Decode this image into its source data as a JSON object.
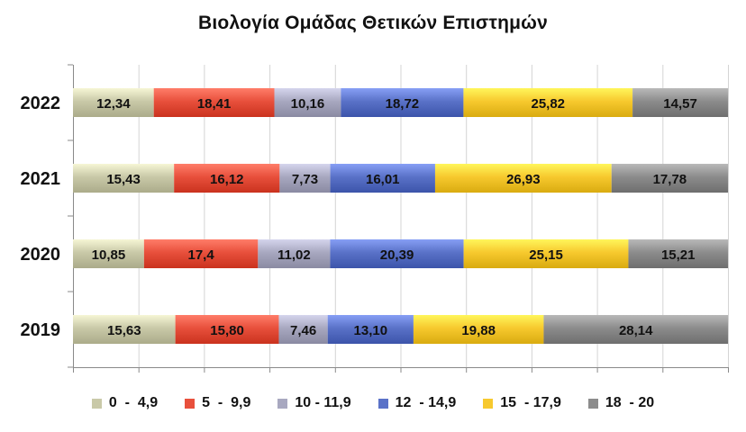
{
  "chart_data": {
    "type": "bar",
    "orientation": "horizontal",
    "stacked": true,
    "normalized_100_percent": true,
    "title": "Βιολογία Ομάδας Θετικών Επιστημών",
    "xlabel": "",
    "ylabel": "",
    "xlim": [
      0,
      100
    ],
    "categories": [
      "2022",
      "2021",
      "2020",
      "2019"
    ],
    "series": [
      {
        "name": "0  -  4,9",
        "color": "#c9c9a8",
        "values": [
          12.34,
          15.43,
          10.85,
          15.63
        ],
        "labels": [
          "12,34",
          "15,43",
          "10,85",
          "15,63"
        ]
      },
      {
        "name": "5  -  9,9",
        "color": "#e8503c",
        "values": [
          18.41,
          16.12,
          17.4,
          15.8
        ],
        "labels": [
          "18,41",
          "16,12",
          "17,4",
          "15,80"
        ]
      },
      {
        "name": "10 - 11,9",
        "color": "#a8a8c0",
        "values": [
          10.16,
          7.73,
          11.02,
          7.46
        ],
        "labels": [
          "10,16",
          "7,73",
          "11,02",
          "7,46"
        ]
      },
      {
        "name": "12  - 14,9",
        "color": "#5a72c8",
        "values": [
          18.72,
          16.01,
          20.39,
          13.1
        ],
        "labels": [
          "18,72",
          "16,01",
          "20,39",
          "13,10"
        ]
      },
      {
        "name": "15  - 17,9",
        "color": "#f7c92e",
        "values": [
          25.82,
          26.93,
          25.15,
          19.88
        ],
        "labels": [
          "25,82",
          "26,93",
          "25,15",
          "19,88"
        ]
      },
      {
        "name": "18  - 20",
        "color": "#8c8c8c",
        "values": [
          14.57,
          17.78,
          15.21,
          28.14
        ],
        "labels": [
          "14,57",
          "17,78",
          "15,21",
          "28,14"
        ]
      }
    ],
    "grid": "vertical",
    "legend_position": "bottom"
  }
}
